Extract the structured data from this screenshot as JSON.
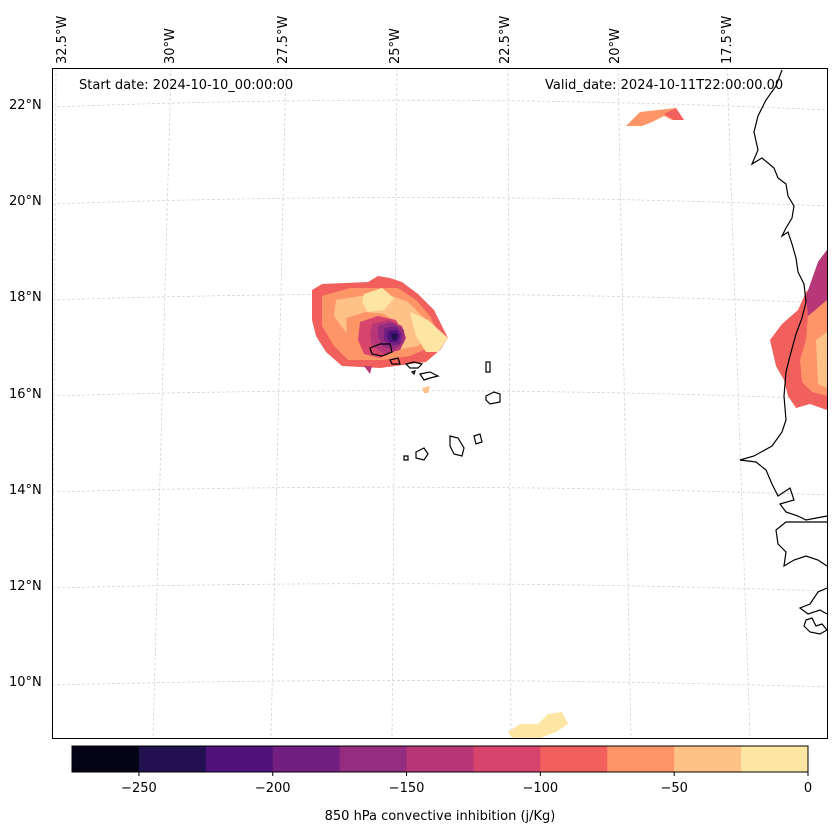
{
  "map": {
    "type": "map",
    "title": "850 hPa convective inhibition",
    "start_date_text": "Start date: 2024-10-10_00:00:00",
    "valid_date_text": "Valid_date: 2024-10-11T22:00:00.00",
    "lon_labels": [
      "32.5°W",
      "30°W",
      "27.5°W",
      "25°W",
      "22.5°W",
      "20°W",
      "17.5°W"
    ],
    "lat_labels": [
      "22°N",
      "20°N",
      "18°N",
      "16°N",
      "14°N",
      "12°N",
      "10°N"
    ],
    "places_visible": [
      "Cabo Verde islands",
      "West African coast (Mauritania, Senegal, Gambia, Guinea-Bissau)"
    ]
  },
  "colorbar": {
    "label": "850 hPa convective inhibition (j/Kg)",
    "tick_labels": [
      "−250",
      "−200",
      "−150",
      "−100",
      "−50",
      "0"
    ],
    "tick_values": [
      -250,
      -200,
      -150,
      -100,
      -50,
      0
    ],
    "range": [
      -275,
      0
    ],
    "levels": [
      -275,
      -250,
      -225,
      -200,
      -175,
      -150,
      -125,
      -100,
      -75,
      -50,
      -25,
      0
    ],
    "colors": [
      "#050416",
      "#221150",
      "#4f127b",
      "#721f81",
      "#942c80",
      "#b73779",
      "#d8456c",
      "#f1605d",
      "#fd9567",
      "#fec287",
      "#fde6a4"
    ]
  },
  "colors": {
    "coast": "#000000",
    "grid": "#d0d0d0"
  }
}
